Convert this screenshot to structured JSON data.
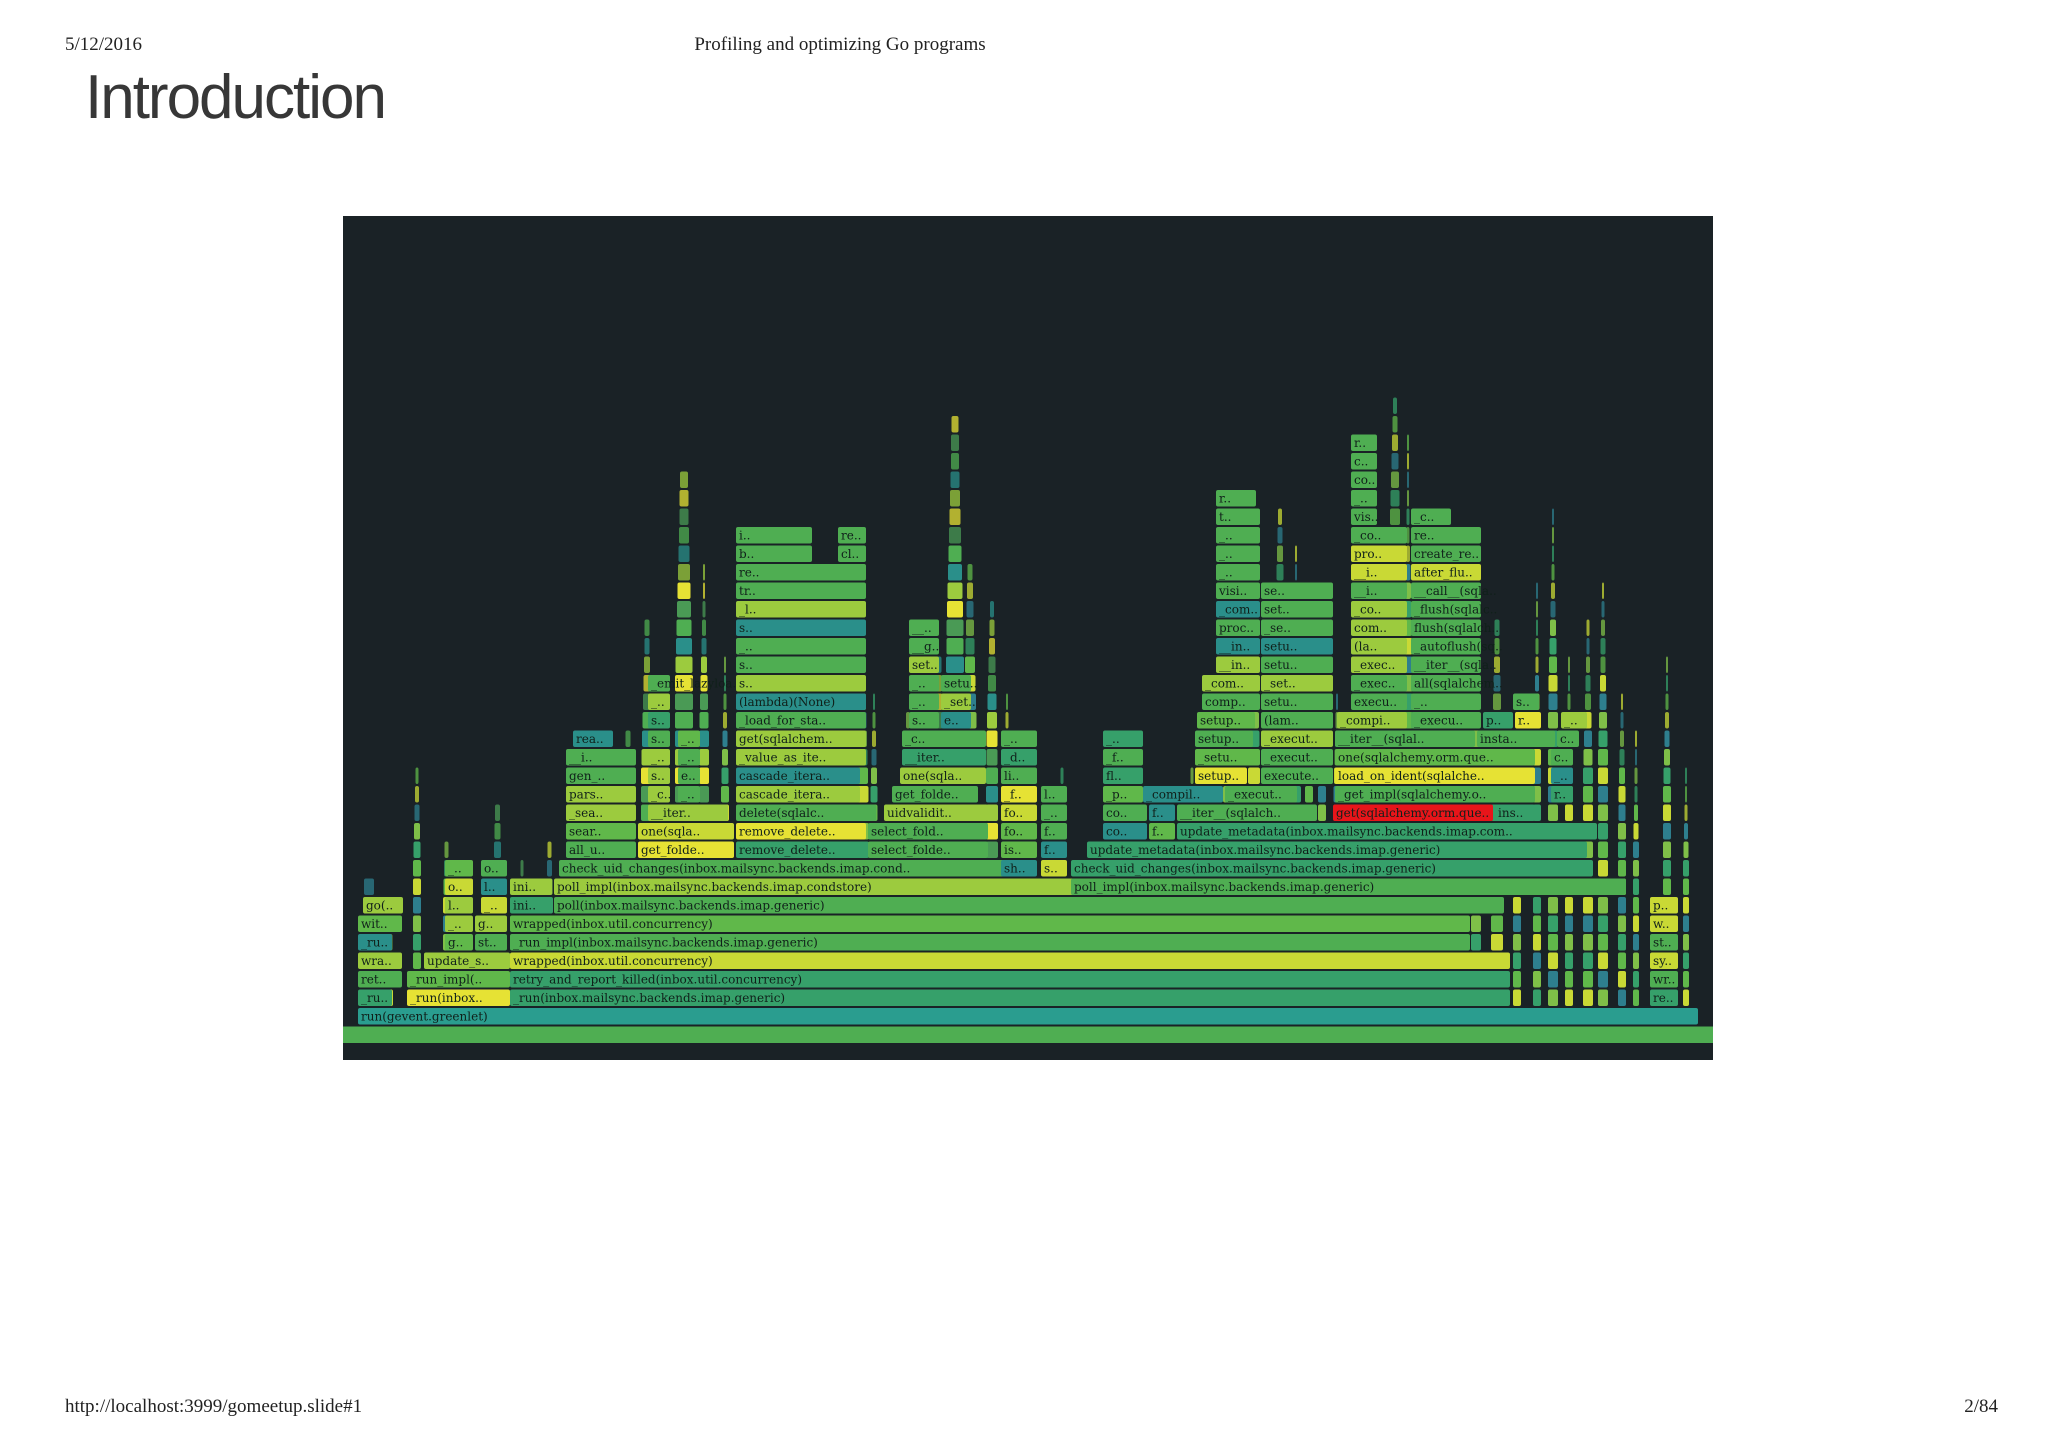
{
  "header": {
    "date": "5/12/2016",
    "doc_title": "Profiling and optimizing Go programs"
  },
  "slide": {
    "title": "Introduction"
  },
  "footer": {
    "url": "http://localhost:3999/gomeetup.slide#1",
    "page": "2/84"
  },
  "flamegraph": {
    "highlight_color": "#e8151a",
    "palette": [
      "#4fae52",
      "#36a06a",
      "#2a8f8a",
      "#60b84a",
      "#9ccb3e",
      "#c9d935",
      "#e6e234",
      "#2e7f8e",
      "#4a9a55",
      "#7fbf48"
    ],
    "background": "#1a2226",
    "frames": [
      {
        "text": "run(gevent.greenlet)",
        "color": "#2a9d8f"
      },
      {
        "text": "_ru..",
        "color": "#36a06a"
      },
      {
        "text": "_run(inbox..",
        "color": "#e6e234"
      },
      {
        "text": "_run(inbox.mailsync.backends.imap.generic)",
        "color": "#36a06a"
      },
      {
        "text": "re..",
        "color": "#36a06a"
      },
      {
        "text": "ret..",
        "color": "#4fae52"
      },
      {
        "text": "_run_impl(..",
        "color": "#60b84a"
      },
      {
        "text": "retry_and_report_killed(inbox.util.concurrency)",
        "color": "#36a06a"
      },
      {
        "text": "wr..",
        "color": "#4fae52"
      },
      {
        "text": "wra..",
        "color": "#9ccb3e"
      },
      {
        "text": "update_s..",
        "color": "#9ccb3e"
      },
      {
        "text": "wrapped(inbox.util.concurrency)",
        "color": "#c9d935"
      },
      {
        "text": "sy..",
        "color": "#c9d935"
      },
      {
        "text": "_ru..",
        "color": "#2a8f8a"
      },
      {
        "text": "g..",
        "color": "#60b84a"
      },
      {
        "text": "st..",
        "color": "#4fae52"
      },
      {
        "text": "_run_impl(inbox.mailsync.backends.imap.generic)",
        "color": "#4fae52"
      },
      {
        "text": "st..",
        "color": "#4fae52"
      },
      {
        "text": "wit..",
        "color": "#60b84a"
      },
      {
        "text": "_..",
        "color": "#9ccb3e"
      },
      {
        "text": "g..",
        "color": "#9ccb3e"
      },
      {
        "text": "wrapped(inbox.util.concurrency)",
        "color": "#60b84a"
      },
      {
        "text": "w..",
        "color": "#c9d935"
      },
      {
        "text": "go(..",
        "color": "#9ccb3e"
      },
      {
        "text": "l..",
        "color": "#9ccb3e"
      },
      {
        "text": "_..",
        "color": "#c9d935"
      },
      {
        "text": "ini..",
        "color": "#36a06a"
      },
      {
        "text": "poll(inbox.mailsync.backends.imap.generic)",
        "color": "#4fae52"
      },
      {
        "text": "p..",
        "color": "#c9d935"
      },
      {
        "text": "o..",
        "color": "#c9d935"
      },
      {
        "text": "l..",
        "color": "#2a8f8a"
      },
      {
        "text": "ini..",
        "color": "#9ccb3e"
      },
      {
        "text": "poll_impl(inbox.mailsync.backends.imap.condstore)",
        "color": "#9ccb3e"
      },
      {
        "text": "poll_impl(inbox.mailsync.backends.imap.generic)",
        "color": "#4fae52"
      },
      {
        "text": "_..",
        "color": "#60b84a"
      },
      {
        "text": "o..",
        "color": "#4fae52"
      },
      {
        "text": "check_uid_changes(inbox.mailsync.backends.imap.cond..",
        "color": "#4fae52"
      },
      {
        "text": "sh..",
        "color": "#2a8f8a"
      },
      {
        "text": "s..",
        "color": "#c9d935"
      },
      {
        "text": "check_uid_changes(inbox.mailsync.backends.imap.generic)",
        "color": "#36a06a"
      },
      {
        "text": "all_u..",
        "color": "#4fae52"
      },
      {
        "text": "get_folde..",
        "color": "#e6e234"
      },
      {
        "text": "remove_delete..",
        "color": "#36a06a"
      },
      {
        "text": "select_folde..",
        "color": "#4fae52"
      },
      {
        "text": "is..",
        "color": "#60b84a"
      },
      {
        "text": "f..",
        "color": "#2a8f8a"
      },
      {
        "text": "update_metadata(inbox.mailsync.backends.imap.generic)",
        "color": "#36a06a"
      },
      {
        "text": "sear..",
        "color": "#60b84a"
      },
      {
        "text": "one(sqla..",
        "color": "#c9d935"
      },
      {
        "text": "remove_delete..",
        "color": "#e6e234"
      },
      {
        "text": "select_fold..",
        "color": "#4fae52"
      },
      {
        "text": "fo..",
        "color": "#60b84a"
      },
      {
        "text": "f..",
        "color": "#4fae52"
      },
      {
        "text": "co..",
        "color": "#2a8f8a"
      },
      {
        "text": "f..",
        "color": "#60b84a"
      },
      {
        "text": "update_metadata(inbox.mailsync.backends.imap.com..",
        "color": "#36a06a"
      },
      {
        "text": "_sea..",
        "color": "#9ccb3e"
      },
      {
        "text": "__iter..",
        "color": "#9ccb3e"
      },
      {
        "text": "delete(sqlalc..",
        "color": "#4fae52"
      },
      {
        "text": "uidvalidit..",
        "color": "#9ccb3e"
      },
      {
        "text": "fo..",
        "color": "#c9d935"
      },
      {
        "text": "_..",
        "color": "#4fae52"
      },
      {
        "text": "co..",
        "color": "#4fae52"
      },
      {
        "text": "f..",
        "color": "#2a8f8a"
      },
      {
        "text": "__iter__(sqlalch..",
        "color": "#4fae52"
      },
      {
        "text": "get(sqlalchemy.orm.que..",
        "color": "#e8151a"
      },
      {
        "text": "ins..",
        "color": "#36a06a"
      },
      {
        "text": "pars..",
        "color": "#9ccb3e"
      },
      {
        "text": "_c..",
        "color": "#9ccb3e"
      },
      {
        "text": "_..",
        "color": "#4fae52"
      },
      {
        "text": "cascade_itera..",
        "color": "#9ccb3e"
      },
      {
        "text": "get_folde..",
        "color": "#4fae52"
      },
      {
        "text": "_f..",
        "color": "#e6e234"
      },
      {
        "text": "l..",
        "color": "#4fae52"
      },
      {
        "text": "_p..",
        "color": "#60b84a"
      },
      {
        "text": "_compil..",
        "color": "#2a8f8a"
      },
      {
        "text": "_execut..",
        "color": "#4fae52"
      },
      {
        "text": "_get_impl(sqlalchemy.o..",
        "color": "#4fae52"
      },
      {
        "text": "r..",
        "color": "#36a06a"
      },
      {
        "text": "gen_..",
        "color": "#4fae52"
      },
      {
        "text": "s..",
        "color": "#9ccb3e"
      },
      {
        "text": "e..",
        "color": "#4fae52"
      },
      {
        "text": "cascade_itera..",
        "color": "#2a8f8a"
      },
      {
        "text": "one(sqla..",
        "color": "#9ccb3e"
      },
      {
        "text": "li..",
        "color": "#4fae52"
      },
      {
        "text": "fl..",
        "color": "#36a06a"
      },
      {
        "text": "setup..",
        "color": "#e6e234"
      },
      {
        "text": "execute..",
        "color": "#4fae52"
      },
      {
        "text": "load_on_ident(sqlalche..",
        "color": "#e6e234"
      },
      {
        "text": "_..",
        "color": "#2a8f8a"
      },
      {
        "text": "__i..",
        "color": "#4fae52"
      },
      {
        "text": "_..",
        "color": "#9ccb3e"
      },
      {
        "text": "_..",
        "color": "#4fae52"
      },
      {
        "text": "_value_as_ite..",
        "color": "#9ccb3e"
      },
      {
        "text": "__iter..",
        "color": "#36a06a"
      },
      {
        "text": "_d..",
        "color": "#36a06a"
      },
      {
        "text": "_f..",
        "color": "#4fae52"
      },
      {
        "text": "_setu..",
        "color": "#60b84a"
      },
      {
        "text": "_execut..",
        "color": "#4fae52"
      },
      {
        "text": "one(sqlalchemy.orm.que..",
        "color": "#60b84a"
      },
      {
        "text": "c..",
        "color": "#4fae52"
      },
      {
        "text": "rea..",
        "color": "#2a8f8a"
      },
      {
        "text": "s..",
        "color": "#4fae52"
      },
      {
        "text": "_..",
        "color": "#60b84a"
      },
      {
        "text": "get(sqlalchem..",
        "color": "#9ccb3e"
      },
      {
        "text": "_c..",
        "color": "#4fae52"
      },
      {
        "text": "_..",
        "color": "#4fae52"
      },
      {
        "text": "_..",
        "color": "#36a06a"
      },
      {
        "text": "setup..",
        "color": "#4fae52"
      },
      {
        "text": "_execut..",
        "color": "#9ccb3e"
      },
      {
        "text": "__iter__(sqlal..",
        "color": "#4fae52"
      },
      {
        "text": "insta..",
        "color": "#4fae52"
      },
      {
        "text": "c..",
        "color": "#4fae52"
      },
      {
        "text": "s..",
        "color": "#36a06a"
      },
      {
        "text": "_load_for_sta..",
        "color": "#4fae52"
      },
      {
        "text": "s..",
        "color": "#4fae52"
      },
      {
        "text": "e..",
        "color": "#2a8f8a"
      },
      {
        "text": "setup..",
        "color": "#60b84a"
      },
      {
        "text": "(lam..",
        "color": "#4fae52"
      },
      {
        "text": "_compi..",
        "color": "#9ccb3e"
      },
      {
        "text": "_execu..",
        "color": "#4fae52"
      },
      {
        "text": "p..",
        "color": "#36a06a"
      },
      {
        "text": "r..",
        "color": "#e6e234"
      },
      {
        "text": "_..",
        "color": "#9ccb3e"
      },
      {
        "text": "_..",
        "color": "#9ccb3e"
      },
      {
        "text": "(lambda)(None)",
        "color": "#2a8f8a"
      },
      {
        "text": "_..",
        "color": "#4fae52"
      },
      {
        "text": "_set..",
        "color": "#9ccb3e"
      },
      {
        "text": "comp..",
        "color": "#4fae52"
      },
      {
        "text": "setu..",
        "color": "#4fae52"
      },
      {
        "text": "execu..",
        "color": "#4fae52"
      },
      {
        "text": "_..",
        "color": "#4fae52"
      },
      {
        "text": "s..",
        "color": "#4fae52"
      },
      {
        "text": "_emit_lazyloa..",
        "color": "#4fae52"
      },
      {
        "text": "s..",
        "color": "#9ccb3e"
      },
      {
        "text": "_..",
        "color": "#4fae52"
      },
      {
        "text": "setu..",
        "color": "#4fae52"
      },
      {
        "text": "_com..",
        "color": "#9ccb3e"
      },
      {
        "text": "_set..",
        "color": "#9ccb3e"
      },
      {
        "text": "_exec..",
        "color": "#4fae52"
      },
      {
        "text": "all(sqlalchem..",
        "color": "#4fae52"
      },
      {
        "text": "s..",
        "color": "#4fae52"
      },
      {
        "text": "set..",
        "color": "#9ccb3e"
      },
      {
        "text": "__in..",
        "color": "#9ccb3e"
      },
      {
        "text": "setu..",
        "color": "#4fae52"
      },
      {
        "text": "_exec..",
        "color": "#9ccb3e"
      },
      {
        "text": "__iter__(sqla..",
        "color": "#4fae52"
      },
      {
        "text": "_..",
        "color": "#4fae52"
      },
      {
        "text": "__g..",
        "color": "#4fae52"
      },
      {
        "text": "__in..",
        "color": "#2a8f8a"
      },
      {
        "text": "setu..",
        "color": "#2a8f8a"
      },
      {
        "text": "(la..",
        "color": "#9ccb3e"
      },
      {
        "text": "_autoflush(sq..",
        "color": "#4fae52"
      },
      {
        "text": "s..",
        "color": "#2a8f8a"
      },
      {
        "text": "__..",
        "color": "#4fae52"
      },
      {
        "text": "proc..",
        "color": "#4fae52"
      },
      {
        "text": "_se..",
        "color": "#4fae52"
      },
      {
        "text": "com..",
        "color": "#9ccb3e"
      },
      {
        "text": "flush(sqlalch..",
        "color": "#4fae52"
      },
      {
        "text": "_l..",
        "color": "#9ccb3e"
      },
      {
        "text": "_com..",
        "color": "#2a8f8a"
      },
      {
        "text": "set..",
        "color": "#4fae52"
      },
      {
        "text": "_co..",
        "color": "#9ccb3e"
      },
      {
        "text": "_flush(sqlalc..",
        "color": "#4fae52"
      },
      {
        "text": "tr..",
        "color": "#4fae52"
      },
      {
        "text": "visi..",
        "color": "#4fae52"
      },
      {
        "text": "se..",
        "color": "#4fae52"
      },
      {
        "text": "__i..",
        "color": "#4fae52"
      },
      {
        "text": "__call__(sqla..",
        "color": "#4fae52"
      },
      {
        "text": "re..",
        "color": "#4fae52"
      },
      {
        "text": "_..",
        "color": "#4fae52"
      },
      {
        "text": "__i..",
        "color": "#c9d935"
      },
      {
        "text": "after_flu..",
        "color": "#c9d935"
      },
      {
        "text": "b..",
        "color": "#4fae52"
      },
      {
        "text": "cl..",
        "color": "#4fae52"
      },
      {
        "text": "_..",
        "color": "#4fae52"
      },
      {
        "text": "pro..",
        "color": "#c9d935"
      },
      {
        "text": "create_re..",
        "color": "#4fae52"
      },
      {
        "text": "i..",
        "color": "#4fae52"
      },
      {
        "text": "re..",
        "color": "#4fae52"
      },
      {
        "text": "_..",
        "color": "#4fae52"
      },
      {
        "text": "_co..",
        "color": "#4fae52"
      },
      {
        "text": "re..",
        "color": "#4fae52"
      },
      {
        "text": "t..",
        "color": "#4fae52"
      },
      {
        "text": "vis..",
        "color": "#4fae52"
      },
      {
        "text": "_c..",
        "color": "#4fae52"
      },
      {
        "text": "r..",
        "color": "#4fae52"
      },
      {
        "text": "_..",
        "color": "#4fae52"
      },
      {
        "text": "co..",
        "color": "#4fae52"
      },
      {
        "text": "c..",
        "color": "#4fae52"
      },
      {
        "text": "r..",
        "color": "#4fae52"
      },
      {
        "text": "_..",
        "color": "#4fae52"
      },
      {
        "text": "c..",
        "color": "#4fae52"
      }
    ]
  }
}
